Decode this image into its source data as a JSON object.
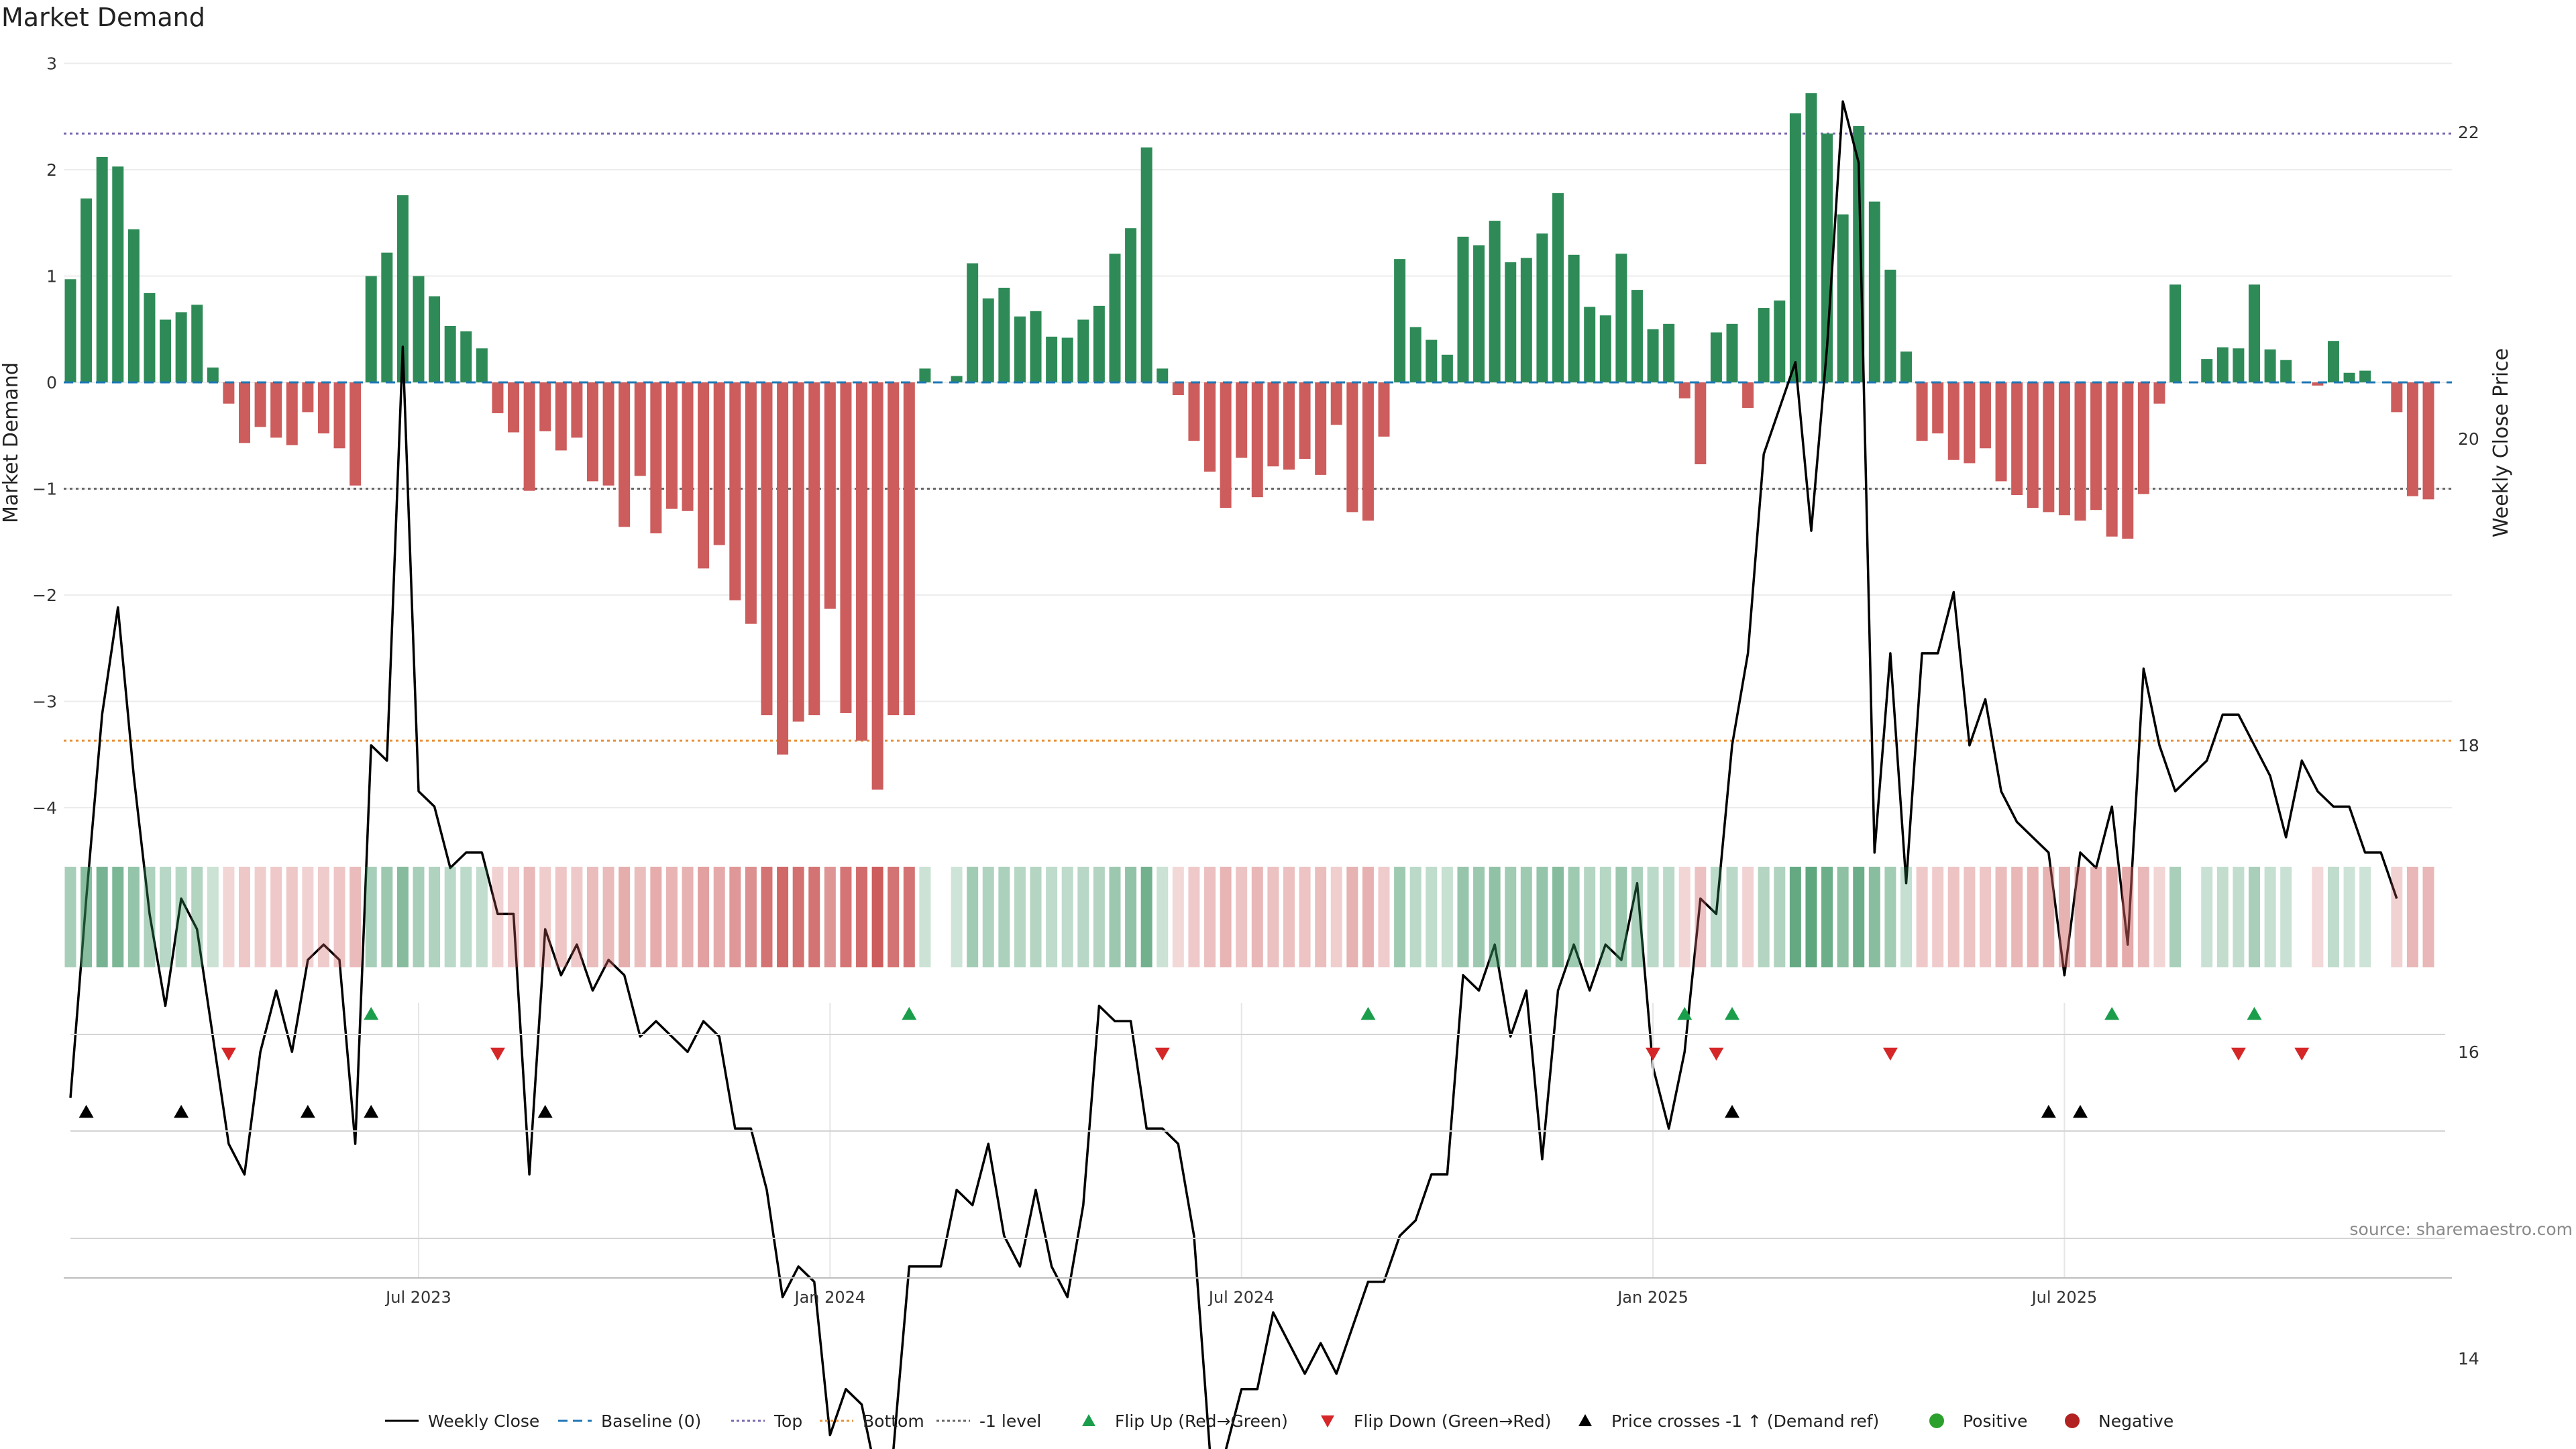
{
  "title": "Market Demand",
  "source": "source: sharemaestro.com",
  "colors": {
    "positive": "#2e8b57",
    "negative": "#cd5c5c",
    "price": "#000000",
    "baseline": "#1f77b4",
    "top": "#7b68b0",
    "bottom": "#e8913a",
    "minus_one": "#666666",
    "flip_up": "#1a9e4b",
    "flip_down": "#d62728",
    "cross": "#000000",
    "positive_dot": "#2ca02c",
    "negative_dot": "#b22222"
  },
  "chart_data": {
    "type": "bar",
    "title": "Market Demand",
    "ylabel": "Market Demand",
    "y2label": "Weekly Close Price",
    "ylim": [
      -4.25,
      3.0
    ],
    "y2lim": [
      13.0,
      23.15
    ],
    "yticks": [
      3,
      2,
      1,
      0,
      -1,
      -2,
      -3,
      -4
    ],
    "ytick_labels": [
      "3",
      "2",
      "1",
      "0",
      "−1",
      "−2",
      "−3",
      "−4"
    ],
    "y2ticks": [
      22,
      20,
      18,
      16,
      14
    ],
    "y2tick_labels": [
      "22",
      "20",
      "18",
      "16",
      "14"
    ],
    "start_week": 0,
    "xticks": [
      22,
      48,
      74,
      100,
      126
    ],
    "xtick_labels": [
      "Jul 2023",
      "Jan 2024",
      "Jul 2024",
      "Jan 2025",
      "Jul 2025"
    ],
    "reference_lines": {
      "top": 2.34,
      "bottom": -3.37,
      "minus_one": -1.0,
      "baseline": 0
    },
    "series": [
      {
        "name": "Market Demand",
        "values": [
          0.97,
          1.73,
          2.12,
          2.03,
          1.44,
          0.84,
          0.59,
          0.66,
          0.73,
          0.14,
          -0.2,
          -0.57,
          -0.42,
          -0.52,
          -0.59,
          -0.28,
          -0.48,
          -0.62,
          -0.97,
          1.0,
          1.22,
          1.76,
          1.0,
          0.81,
          0.53,
          0.48,
          0.32,
          -0.29,
          -0.47,
          -1.02,
          -0.46,
          -0.64,
          -0.52,
          -0.93,
          -0.97,
          -1.36,
          -0.88,
          -1.42,
          -1.19,
          -1.21,
          -1.75,
          -1.53,
          -2.05,
          -2.27,
          -3.13,
          -3.5,
          -3.19,
          -3.13,
          -2.13,
          -3.11,
          -3.37,
          -3.83,
          -3.13,
          -3.13,
          0.13,
          0,
          0.06,
          1.12,
          0.79,
          0.89,
          0.62,
          0.67,
          0.43,
          0.42,
          0.59,
          0.72,
          1.21,
          1.45,
          2.21,
          0.13,
          -0.12,
          -0.55,
          -0.84,
          -1.18,
          -0.71,
          -1.08,
          -0.79,
          -0.82,
          -0.72,
          -0.87,
          -0.4,
          -1.22,
          -1.3,
          -0.51,
          1.16,
          0.52,
          0.4,
          0.26,
          1.37,
          1.29,
          1.52,
          1.13,
          1.17,
          1.4,
          1.78,
          1.2,
          0.71,
          0.63,
          1.21,
          0.87,
          0.5,
          0.55,
          -0.15,
          -0.77,
          0.47,
          0.55,
          -0.24,
          0.7,
          0.77,
          2.53,
          2.72,
          2.34,
          1.58,
          2.41,
          1.7,
          1.06,
          0.29,
          -0.55,
          -0.48,
          -0.73,
          -0.76,
          -0.62,
          -0.93,
          -1.06,
          -1.18,
          -1.22,
          -1.25,
          -1.3,
          -1.2,
          -1.45,
          -1.47,
          -1.05,
          -0.2,
          0.92,
          0,
          0.22,
          0.33,
          0.32,
          0.92,
          0.31,
          0.21,
          0,
          -0.03,
          0.39,
          0.09,
          0.11,
          0,
          -0.28,
          -1.07,
          -1.1
        ]
      },
      {
        "name": "Weekly Close",
        "values": [
          15.7,
          17.0,
          18.2,
          18.9,
          17.8,
          16.9,
          16.3,
          17.0,
          16.8,
          16.1,
          15.4,
          15.2,
          16.0,
          16.4,
          16.0,
          16.6,
          16.7,
          16.6,
          15.4,
          18.0,
          17.9,
          20.6,
          17.7,
          17.6,
          17.2,
          17.3,
          17.3,
          16.9,
          16.9,
          15.2,
          16.8,
          16.5,
          16.7,
          16.4,
          16.6,
          16.5,
          16.1,
          16.2,
          16.1,
          16.0,
          16.2,
          16.1,
          15.5,
          15.5,
          15.1,
          14.4,
          14.6,
          14.5,
          13.5,
          13.8,
          13.7,
          13.2,
          13.4,
          14.6,
          14.6,
          14.6,
          15.1,
          15.0,
          15.4,
          14.8,
          14.6,
          15.1,
          14.6,
          14.4,
          15.0,
          16.3,
          16.2,
          16.2,
          15.5,
          15.5,
          15.4,
          14.8,
          13.4,
          13.4,
          13.8,
          13.8,
          14.3,
          14.1,
          13.9,
          14.1,
          13.9,
          14.2,
          14.5,
          14.5,
          14.8,
          14.9,
          15.2,
          15.2,
          16.5,
          16.4,
          16.7,
          16.1,
          16.4,
          15.3,
          16.4,
          16.7,
          16.4,
          16.7,
          16.6,
          17.1,
          15.9,
          15.5,
          16.0,
          17.0,
          16.9,
          18.0,
          18.6,
          19.9,
          20.2,
          20.5,
          19.4,
          20.6,
          22.2,
          21.8,
          17.3,
          18.6,
          17.1,
          18.6,
          18.6,
          19.0,
          18.0,
          18.3,
          17.7,
          17.5,
          17.4,
          17.3,
          16.5,
          17.3,
          17.2,
          17.6,
          16.7,
          18.5,
          18.0,
          17.7,
          17.8,
          17.9,
          18.2,
          18.2,
          18.0,
          17.8,
          17.4,
          17.9,
          17.7,
          17.6,
          17.6,
          17.3,
          17.3,
          17.0
        ]
      }
    ],
    "legend": [
      {
        "label": "Weekly Close",
        "kind": "line",
        "color": "#000000"
      },
      {
        "label": "Baseline (0)",
        "kind": "dash",
        "color": "#1f77b4"
      },
      {
        "label": "Top",
        "kind": "dot",
        "color": "#7b68b0"
      },
      {
        "label": "Bottom",
        "kind": "dot",
        "color": "#e8913a"
      },
      {
        "label": "-1 level",
        "kind": "dot",
        "color": "#666666"
      },
      {
        "label": "Flip Up (Red→Green)",
        "kind": "tri_up",
        "color": "#1a9e4b"
      },
      {
        "label": "Flip Down (Green→Red)",
        "kind": "tri_down",
        "color": "#d62728"
      },
      {
        "label": "Price crosses -1 ↑ (Demand ref)",
        "kind": "tri_up",
        "color": "#000000"
      },
      {
        "label": "Positive",
        "kind": "circle",
        "color": "#2ca02c"
      },
      {
        "label": "Negative",
        "kind": "circle",
        "color": "#b22222"
      }
    ],
    "flip_up_weeks": [
      19,
      53,
      82,
      102,
      105,
      129,
      138
    ],
    "flip_down_weeks": [
      10,
      27,
      69,
      100,
      104,
      115,
      137,
      141
    ],
    "price_cross_weeks": [
      1,
      7,
      15,
      19,
      30,
      105,
      125,
      127
    ]
  }
}
